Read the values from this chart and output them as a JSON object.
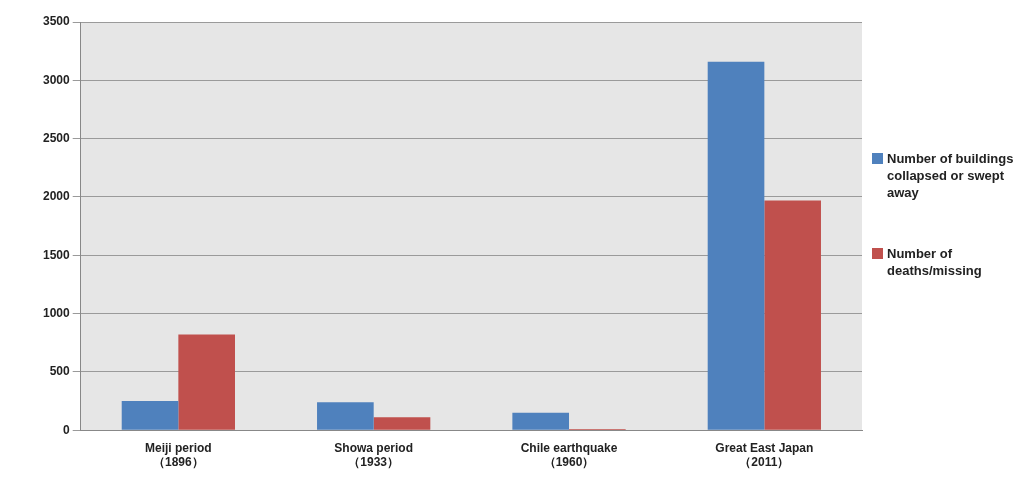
{
  "chart_data": {
    "type": "bar",
    "categories": [
      "Meiji period\n（1896）",
      "Showa period\n（1933）",
      "Chile earthquake\n（1960）",
      "Great East Japan\n（2011）"
    ],
    "series": [
      {
        "name": "Number of buildings collapsed or swept away",
        "color": "#4f81bd",
        "values": [
          250,
          240,
          150,
          3160
        ]
      },
      {
        "name": "Number of deaths/missing",
        "color": "#c0504d",
        "values": [
          820,
          110,
          10,
          1970
        ]
      }
    ],
    "ylim": [
      0,
      3500
    ],
    "yticks": [
      0,
      500,
      1000,
      1500,
      2000,
      2500,
      3000,
      3500
    ],
    "grid": "y",
    "legend": "right"
  }
}
